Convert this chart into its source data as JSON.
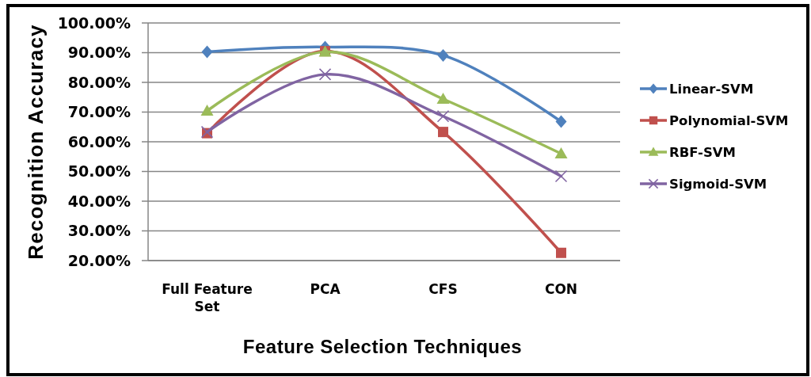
{
  "chart_data": {
    "type": "line",
    "xlabel": "Feature Selection Techniques",
    "ylabel": "Recognition Accuracy",
    "categories": [
      "Full Feature Set",
      "PCA",
      "CFS",
      "CON"
    ],
    "ylim": [
      20,
      100
    ],
    "yticks": [
      {
        "value": 20,
        "label": "20.00%"
      },
      {
        "value": 30,
        "label": "30.00%"
      },
      {
        "value": 40,
        "label": "40.00%"
      },
      {
        "value": 50,
        "label": "50.00%"
      },
      {
        "value": 60,
        "label": "60.00%"
      },
      {
        "value": 70,
        "label": "70.00%"
      },
      {
        "value": 80,
        "label": "80.00%"
      },
      {
        "value": 90,
        "label": "90.00%"
      },
      {
        "value": 100,
        "label": "100.00%"
      }
    ],
    "grid": "y",
    "legend": "right",
    "series": [
      {
        "name": "Linear-SVM",
        "color": "#4f81bd",
        "marker": "diamond",
        "values": [
          90.3,
          91.9,
          89.1,
          66.8
        ]
      },
      {
        "name": "Polynomial-SVM",
        "color": "#c0504d",
        "marker": "square",
        "values": [
          62.9,
          90.5,
          63.3,
          22.6
        ]
      },
      {
        "name": "RBF-SVM",
        "color": "#9bbb59",
        "marker": "triangle",
        "values": [
          70.4,
          90.3,
          74.4,
          56
        ]
      },
      {
        "name": "Sigmoid-SVM",
        "color": "#8064a2",
        "marker": "cross",
        "values": [
          63.3,
          82.7,
          68.6,
          48.4
        ]
      }
    ]
  }
}
